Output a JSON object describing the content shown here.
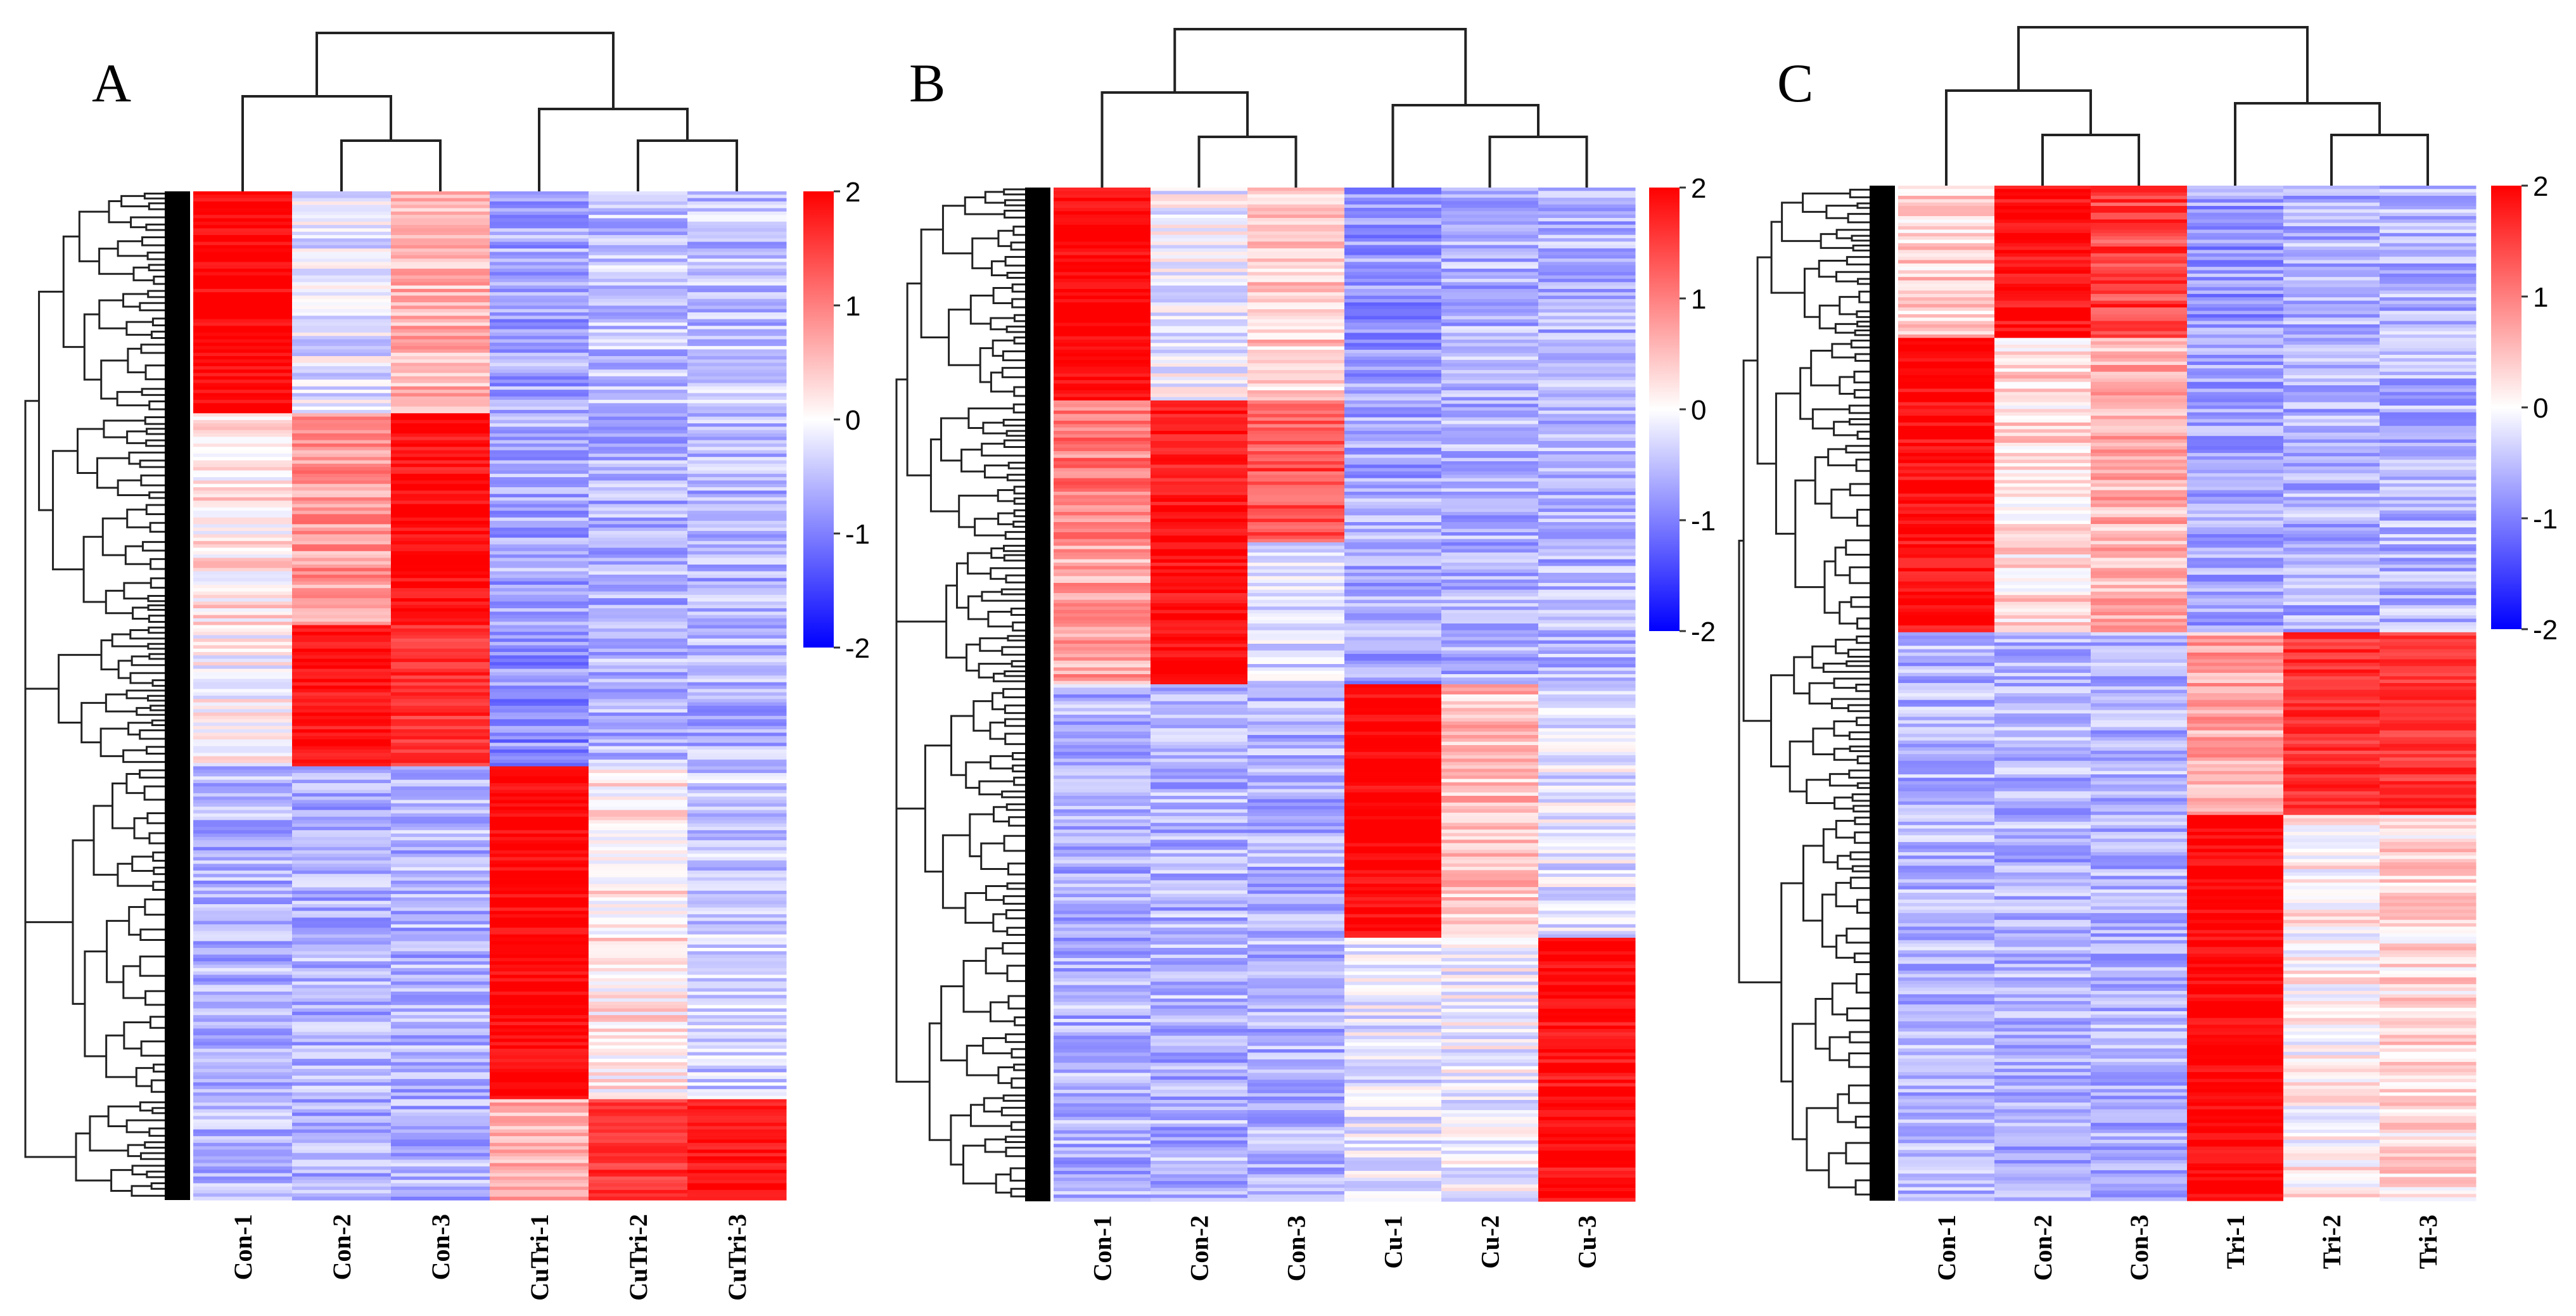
{
  "chart_data": [
    {
      "type": "heatmap",
      "panel_label": "A",
      "columns": [
        "Con-1",
        "Con-2",
        "Con-3",
        "CuTri-1",
        "CuTri-2",
        "CuTri-3"
      ],
      "column_dendrogram": "((Con-1,(Con-2,Con-3)),(CuTri-1,(CuTri-2,CuTri-3)))",
      "row_dendrogram": true,
      "colorbar": {
        "ticks": [
          2,
          1,
          0,
          -1,
          -2
        ],
        "min": -2,
        "max": 2,
        "colors": [
          "#0000ff",
          "#ffffff",
          "#ff0000"
        ]
      },
      "row_blocks": [
        {
          "rows": 0.22,
          "values": [
            2.0,
            -0.2,
            0.6,
            -0.7,
            -0.5,
            -0.5
          ]
        },
        {
          "rows": 0.21,
          "values": [
            0.2,
            0.8,
            1.9,
            -0.7,
            -0.6,
            -0.6
          ]
        },
        {
          "rows": 0.14,
          "values": [
            0.0,
            1.9,
            1.6,
            -0.9,
            -0.6,
            -0.6
          ]
        },
        {
          "rows": 0.33,
          "values": [
            -0.6,
            -0.6,
            -0.6,
            2.0,
            0.2,
            -0.4
          ]
        },
        {
          "rows": 0.1,
          "values": [
            -0.6,
            -0.6,
            -0.6,
            0.6,
            1.6,
            1.9
          ]
        }
      ]
    },
    {
      "type": "heatmap",
      "panel_label": "B",
      "columns": [
        "Con-1",
        "Con-2",
        "Con-3",
        "Cu-1",
        "Cu-2",
        "Cu-3"
      ],
      "column_dendrogram": "((Con-1,(Con-2,Con-3)),(Cu-1,(Cu-2,Cu-3)))",
      "row_dendrogram": true,
      "colorbar": {
        "ticks": [
          2,
          1,
          0,
          -1,
          -2
        ],
        "min": -2,
        "max": 2,
        "colors": [
          "#0000ff",
          "#ffffff",
          "#ff0000"
        ]
      },
      "row_blocks": [
        {
          "rows": 0.21,
          "values": [
            2.0,
            -0.1,
            0.4,
            -0.8,
            -0.6,
            -0.6
          ]
        },
        {
          "rows": 0.14,
          "values": [
            1.0,
            1.8,
            1.4,
            -0.7,
            -0.6,
            -0.6
          ]
        },
        {
          "rows": 0.14,
          "values": [
            0.7,
            1.9,
            -0.3,
            -0.7,
            -0.6,
            -0.6
          ]
        },
        {
          "rows": 0.25,
          "values": [
            -0.6,
            -0.6,
            -0.6,
            2.0,
            0.5,
            -0.2
          ]
        },
        {
          "rows": 0.26,
          "values": [
            -0.6,
            -0.6,
            -0.6,
            -0.2,
            -0.1,
            1.9
          ]
        }
      ]
    },
    {
      "type": "heatmap",
      "panel_label": "C",
      "columns": [
        "Con-1",
        "Con-2",
        "Con-3",
        "Tri-1",
        "Tri-2",
        "Tri-3"
      ],
      "column_dendrogram": "((Con-1,(Con-2,Con-3)),(Tri-1,(Tri-2,Tri-3)))",
      "row_dendrogram": true,
      "colorbar": {
        "ticks": [
          2,
          1,
          0,
          -1,
          -2
        ],
        "min": -2,
        "max": 2,
        "colors": [
          "#0000ff",
          "#ffffff",
          "#ff0000"
        ]
      },
      "row_blocks": [
        {
          "rows": 0.15,
          "values": [
            0.4,
            1.9,
            1.5,
            -0.8,
            -0.6,
            -0.6
          ]
        },
        {
          "rows": 0.29,
          "values": [
            1.9,
            0.3,
            0.6,
            -0.7,
            -0.6,
            -0.6
          ]
        },
        {
          "rows": 0.18,
          "values": [
            -0.6,
            -0.6,
            -0.6,
            0.7,
            1.6,
            1.6
          ]
        },
        {
          "rows": 0.38,
          "values": [
            -0.6,
            -0.6,
            -0.6,
            2.0,
            0.1,
            0.3
          ]
        }
      ]
    }
  ]
}
